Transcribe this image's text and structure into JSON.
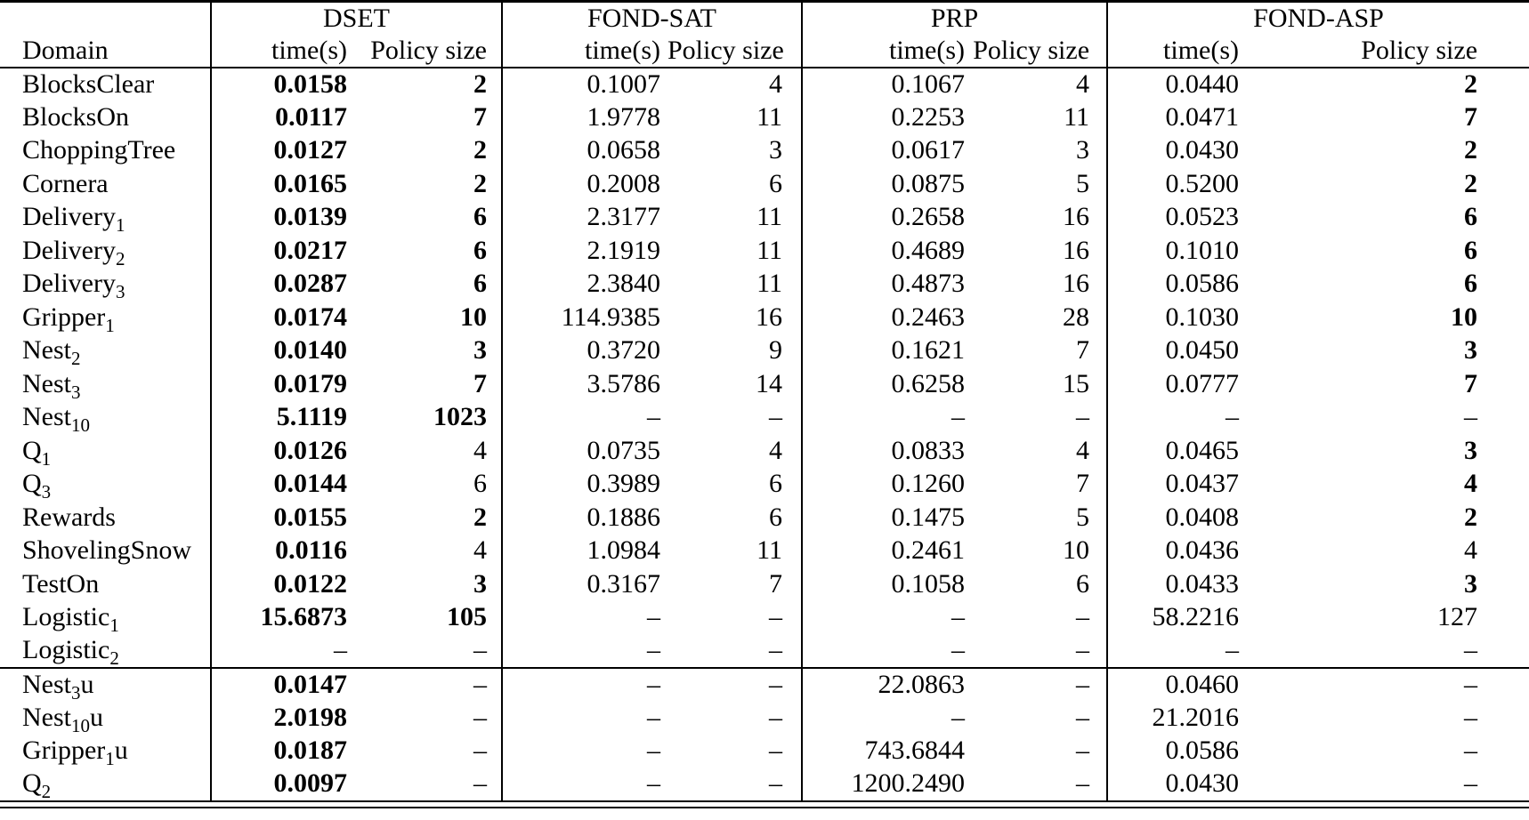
{
  "colors": {
    "background": "#ffffff",
    "text": "#000000",
    "rule": "#000000"
  },
  "table": {
    "domain_header": "Domain",
    "groups": [
      {
        "label": "DSET"
      },
      {
        "label": "FOND-SAT"
      },
      {
        "label": "PRP"
      },
      {
        "label": "FOND-ASP"
      }
    ],
    "sub_headers": {
      "time": "time(s)",
      "size": "Policy size"
    },
    "dash": "–",
    "rows": [
      {
        "domain": {
          "base": "BlocksClear",
          "sub": "",
          "suffix": ""
        },
        "dset": {
          "time": "0.0158",
          "time_bold": true,
          "size": "2",
          "size_bold": true
        },
        "fondsat": {
          "time": "0.1007",
          "time_bold": false,
          "size": "4",
          "size_bold": false
        },
        "prp": {
          "time": "0.1067",
          "time_bold": false,
          "size": "4",
          "size_bold": false
        },
        "fondasp": {
          "time": "0.0440",
          "time_bold": false,
          "size": "2",
          "size_bold": true
        }
      },
      {
        "domain": {
          "base": "BlocksOn",
          "sub": "",
          "suffix": ""
        },
        "dset": {
          "time": "0.0117",
          "time_bold": true,
          "size": "7",
          "size_bold": true
        },
        "fondsat": {
          "time": "1.9778",
          "time_bold": false,
          "size": "11",
          "size_bold": false
        },
        "prp": {
          "time": "0.2253",
          "time_bold": false,
          "size": "11",
          "size_bold": false
        },
        "fondasp": {
          "time": "0.0471",
          "time_bold": false,
          "size": "7",
          "size_bold": true
        }
      },
      {
        "domain": {
          "base": "ChoppingTree",
          "sub": "",
          "suffix": ""
        },
        "dset": {
          "time": "0.0127",
          "time_bold": true,
          "size": "2",
          "size_bold": true
        },
        "fondsat": {
          "time": "0.0658",
          "time_bold": false,
          "size": "3",
          "size_bold": false
        },
        "prp": {
          "time": "0.0617",
          "time_bold": false,
          "size": "3",
          "size_bold": false
        },
        "fondasp": {
          "time": "0.0430",
          "time_bold": false,
          "size": "2",
          "size_bold": true
        }
      },
      {
        "domain": {
          "base": "Cornera",
          "sub": "",
          "suffix": ""
        },
        "dset": {
          "time": "0.0165",
          "time_bold": true,
          "size": "2",
          "size_bold": true
        },
        "fondsat": {
          "time": "0.2008",
          "time_bold": false,
          "size": "6",
          "size_bold": false
        },
        "prp": {
          "time": "0.0875",
          "time_bold": false,
          "size": "5",
          "size_bold": false
        },
        "fondasp": {
          "time": "0.5200",
          "time_bold": false,
          "size": "2",
          "size_bold": true
        }
      },
      {
        "domain": {
          "base": "Delivery",
          "sub": "1",
          "suffix": ""
        },
        "dset": {
          "time": "0.0139",
          "time_bold": true,
          "size": "6",
          "size_bold": true
        },
        "fondsat": {
          "time": "2.3177",
          "time_bold": false,
          "size": "11",
          "size_bold": false
        },
        "prp": {
          "time": "0.2658",
          "time_bold": false,
          "size": "16",
          "size_bold": false
        },
        "fondasp": {
          "time": "0.0523",
          "time_bold": false,
          "size": "6",
          "size_bold": true
        }
      },
      {
        "domain": {
          "base": "Delivery",
          "sub": "2",
          "suffix": ""
        },
        "dset": {
          "time": "0.0217",
          "time_bold": true,
          "size": "6",
          "size_bold": true
        },
        "fondsat": {
          "time": "2.1919",
          "time_bold": false,
          "size": "11",
          "size_bold": false
        },
        "prp": {
          "time": "0.4689",
          "time_bold": false,
          "size": "16",
          "size_bold": false
        },
        "fondasp": {
          "time": "0.1010",
          "time_bold": false,
          "size": "6",
          "size_bold": true
        }
      },
      {
        "domain": {
          "base": "Delivery",
          "sub": "3",
          "suffix": ""
        },
        "dset": {
          "time": "0.0287",
          "time_bold": true,
          "size": "6",
          "size_bold": true
        },
        "fondsat": {
          "time": "2.3840",
          "time_bold": false,
          "size": "11",
          "size_bold": false
        },
        "prp": {
          "time": "0.4873",
          "time_bold": false,
          "size": "16",
          "size_bold": false
        },
        "fondasp": {
          "time": "0.0586",
          "time_bold": false,
          "size": "6",
          "size_bold": true
        }
      },
      {
        "domain": {
          "base": "Gripper",
          "sub": "1",
          "suffix": ""
        },
        "dset": {
          "time": "0.0174",
          "time_bold": true,
          "size": "10",
          "size_bold": true
        },
        "fondsat": {
          "time": "114.9385",
          "time_bold": false,
          "size": "16",
          "size_bold": false
        },
        "prp": {
          "time": "0.2463",
          "time_bold": false,
          "size": "28",
          "size_bold": false
        },
        "fondasp": {
          "time": "0.1030",
          "time_bold": false,
          "size": "10",
          "size_bold": true
        }
      },
      {
        "domain": {
          "base": "Nest",
          "sub": "2",
          "suffix": ""
        },
        "dset": {
          "time": "0.0140",
          "time_bold": true,
          "size": "3",
          "size_bold": true
        },
        "fondsat": {
          "time": "0.3720",
          "time_bold": false,
          "size": "9",
          "size_bold": false
        },
        "prp": {
          "time": "0.1621",
          "time_bold": false,
          "size": "7",
          "size_bold": false
        },
        "fondasp": {
          "time": "0.0450",
          "time_bold": false,
          "size": "3",
          "size_bold": true
        }
      },
      {
        "domain": {
          "base": "Nest",
          "sub": "3",
          "suffix": ""
        },
        "dset": {
          "time": "0.0179",
          "time_bold": true,
          "size": "7",
          "size_bold": true
        },
        "fondsat": {
          "time": "3.5786",
          "time_bold": false,
          "size": "14",
          "size_bold": false
        },
        "prp": {
          "time": "0.6258",
          "time_bold": false,
          "size": "15",
          "size_bold": false
        },
        "fondasp": {
          "time": "0.0777",
          "time_bold": false,
          "size": "7",
          "size_bold": true
        }
      },
      {
        "domain": {
          "base": "Nest",
          "sub": "10",
          "suffix": ""
        },
        "dset": {
          "time": "5.1119",
          "time_bold": true,
          "size": "1023",
          "size_bold": true
        },
        "fondsat": {
          "time": "–",
          "time_bold": false,
          "size": "–",
          "size_bold": false
        },
        "prp": {
          "time": "–",
          "time_bold": false,
          "size": "–",
          "size_bold": false
        },
        "fondasp": {
          "time": "–",
          "time_bold": false,
          "size": "–",
          "size_bold": false
        }
      },
      {
        "domain": {
          "base": "Q",
          "sub": "1",
          "suffix": ""
        },
        "dset": {
          "time": "0.0126",
          "time_bold": true,
          "size": "4",
          "size_bold": false
        },
        "fondsat": {
          "time": "0.0735",
          "time_bold": false,
          "size": "4",
          "size_bold": false
        },
        "prp": {
          "time": "0.0833",
          "time_bold": false,
          "size": "4",
          "size_bold": false
        },
        "fondasp": {
          "time": "0.0465",
          "time_bold": false,
          "size": "3",
          "size_bold": true
        }
      },
      {
        "domain": {
          "base": "Q",
          "sub": "3",
          "suffix": ""
        },
        "dset": {
          "time": "0.0144",
          "time_bold": true,
          "size": "6",
          "size_bold": false
        },
        "fondsat": {
          "time": "0.3989",
          "time_bold": false,
          "size": "6",
          "size_bold": false
        },
        "prp": {
          "time": "0.1260",
          "time_bold": false,
          "size": "7",
          "size_bold": false
        },
        "fondasp": {
          "time": "0.0437",
          "time_bold": false,
          "size": "4",
          "size_bold": true
        }
      },
      {
        "domain": {
          "base": "Rewards",
          "sub": "",
          "suffix": ""
        },
        "dset": {
          "time": "0.0155",
          "time_bold": true,
          "size": "2",
          "size_bold": true
        },
        "fondsat": {
          "time": "0.1886",
          "time_bold": false,
          "size": "6",
          "size_bold": false
        },
        "prp": {
          "time": "0.1475",
          "time_bold": false,
          "size": "5",
          "size_bold": false
        },
        "fondasp": {
          "time": "0.0408",
          "time_bold": false,
          "size": "2",
          "size_bold": true
        }
      },
      {
        "domain": {
          "base": "ShovelingSnow",
          "sub": "",
          "suffix": ""
        },
        "dset": {
          "time": "0.0116",
          "time_bold": true,
          "size": "4",
          "size_bold": false
        },
        "fondsat": {
          "time": "1.0984",
          "time_bold": false,
          "size": "11",
          "size_bold": false
        },
        "prp": {
          "time": "0.2461",
          "time_bold": false,
          "size": "10",
          "size_bold": false
        },
        "fondasp": {
          "time": "0.0436",
          "time_bold": false,
          "size": "4",
          "size_bold": false
        }
      },
      {
        "domain": {
          "base": "TestOn",
          "sub": "",
          "suffix": ""
        },
        "dset": {
          "time": "0.0122",
          "time_bold": true,
          "size": "3",
          "size_bold": true
        },
        "fondsat": {
          "time": "0.3167",
          "time_bold": false,
          "size": "7",
          "size_bold": false
        },
        "prp": {
          "time": "0.1058",
          "time_bold": false,
          "size": "6",
          "size_bold": false
        },
        "fondasp": {
          "time": "0.0433",
          "time_bold": false,
          "size": "3",
          "size_bold": true
        }
      },
      {
        "domain": {
          "base": "Logistic",
          "sub": "1",
          "suffix": ""
        },
        "dset": {
          "time": "15.6873",
          "time_bold": true,
          "size": "105",
          "size_bold": true
        },
        "fondsat": {
          "time": "–",
          "time_bold": false,
          "size": "–",
          "size_bold": false
        },
        "prp": {
          "time": "–",
          "time_bold": false,
          "size": "–",
          "size_bold": false
        },
        "fondasp": {
          "time": "58.2216",
          "time_bold": false,
          "size": "127",
          "size_bold": false
        }
      },
      {
        "domain": {
          "base": "Logistic",
          "sub": "2",
          "suffix": ""
        },
        "rule_below": true,
        "dset": {
          "time": "–",
          "time_bold": false,
          "size": "–",
          "size_bold": false
        },
        "fondsat": {
          "time": "–",
          "time_bold": false,
          "size": "–",
          "size_bold": false
        },
        "prp": {
          "time": "–",
          "time_bold": false,
          "size": "–",
          "size_bold": false
        },
        "fondasp": {
          "time": "–",
          "time_bold": false,
          "size": "–",
          "size_bold": false
        }
      },
      {
        "domain": {
          "base": "Nest",
          "sub": "3",
          "suffix": "u"
        },
        "dset": {
          "time": "0.0147",
          "time_bold": true,
          "size": "–",
          "size_bold": false
        },
        "fondsat": {
          "time": "–",
          "time_bold": false,
          "size": "–",
          "size_bold": false
        },
        "prp": {
          "time": "22.0863",
          "time_bold": false,
          "size": "–",
          "size_bold": false
        },
        "fondasp": {
          "time": "0.0460",
          "time_bold": false,
          "size": "–",
          "size_bold": false
        }
      },
      {
        "domain": {
          "base": "Nest",
          "sub": "10",
          "suffix": "u"
        },
        "dset": {
          "time": "2.0198",
          "time_bold": true,
          "size": "–",
          "size_bold": false
        },
        "fondsat": {
          "time": "–",
          "time_bold": false,
          "size": "–",
          "size_bold": false
        },
        "prp": {
          "time": "–",
          "time_bold": false,
          "size": "–",
          "size_bold": false
        },
        "fondasp": {
          "time": "21.2016",
          "time_bold": false,
          "size": "–",
          "size_bold": false
        }
      },
      {
        "domain": {
          "base": "Gripper",
          "sub": "1",
          "suffix": "u"
        },
        "dset": {
          "time": "0.0187",
          "time_bold": true,
          "size": "–",
          "size_bold": false
        },
        "fondsat": {
          "time": "–",
          "time_bold": false,
          "size": "–",
          "size_bold": false
        },
        "prp": {
          "time": "743.6844",
          "time_bold": false,
          "size": "–",
          "size_bold": false
        },
        "fondasp": {
          "time": "0.0586",
          "time_bold": false,
          "size": "–",
          "size_bold": false
        }
      },
      {
        "domain": {
          "base": "Q",
          "sub": "2",
          "suffix": ""
        },
        "dset": {
          "time": "0.0097",
          "time_bold": true,
          "size": "–",
          "size_bold": false
        },
        "fondsat": {
          "time": "–",
          "time_bold": false,
          "size": "–",
          "size_bold": false
        },
        "prp": {
          "time": "1200.2490",
          "time_bold": false,
          "size": "–",
          "size_bold": false
        },
        "fondasp": {
          "time": "0.0430",
          "time_bold": false,
          "size": "–",
          "size_bold": false
        }
      }
    ]
  }
}
